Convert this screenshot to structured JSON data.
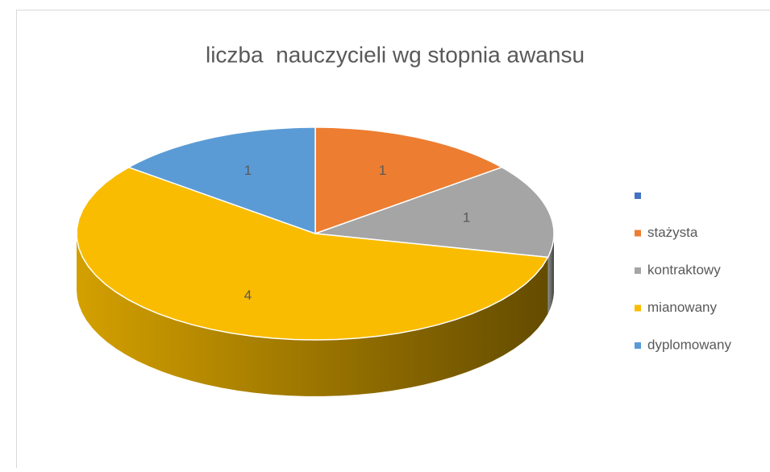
{
  "chart_data": {
    "type": "pie3d",
    "title": "liczba  nauczycieli wg stopnia awansu",
    "categories": [
      null,
      "stażysta",
      "kontraktowy",
      "mianowany",
      "dyplomowany"
    ],
    "values": [
      null,
      1,
      1,
      4,
      1
    ],
    "colors": [
      "#4472c4",
      "#ed7d31",
      "#a5a5a5",
      "#f9bc00",
      "#5b9bd5"
    ],
    "legend": "right"
  }
}
